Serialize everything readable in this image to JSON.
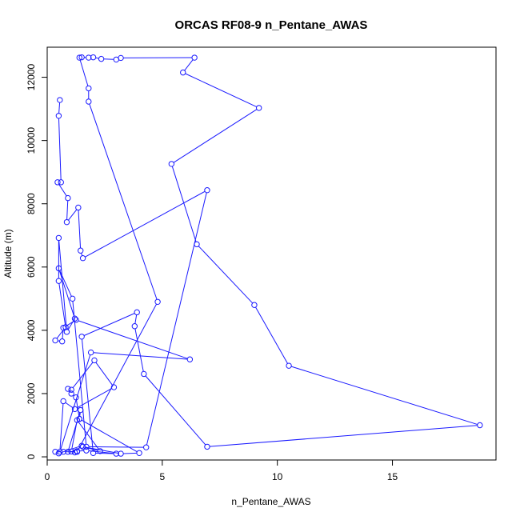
{
  "chart_data": {
    "type": "line",
    "title": "ORCAS RF08-9 n_Pentane_AWAS",
    "xlabel": "n_Pentane_AWAS",
    "ylabel": "Altitude (m)",
    "xlim": [
      0,
      19.5
    ],
    "ylim": [
      -100,
      12950
    ],
    "x_ticks": [
      0,
      5,
      10,
      15
    ],
    "y_ticks": [
      0,
      2000,
      4000,
      6000,
      8000,
      10000,
      12000
    ],
    "grid": false,
    "series_color": "#1a1aff",
    "marker": "open-circle",
    "series": [
      {
        "points": [
          [
            0.55,
            11280
          ],
          [
            0.5,
            10780
          ],
          [
            0.6,
            8680
          ],
          [
            0.45,
            8680
          ],
          [
            0.9,
            8180
          ],
          [
            0.85,
            7420
          ],
          [
            1.35,
            7880
          ],
          [
            1.45,
            6520
          ],
          [
            1.55,
            6280
          ],
          [
            6.95,
            8430
          ],
          [
            4.3,
            300
          ],
          [
            1.7,
            320
          ],
          [
            1.1,
            5000
          ],
          [
            0.5,
            5960
          ],
          [
            1.2,
            4370
          ],
          [
            0.85,
            3950
          ],
          [
            0.5,
            6920
          ],
          [
            0.5,
            5560
          ],
          [
            0.8,
            4100
          ],
          [
            0.35,
            3680
          ],
          [
            0.65,
            3650
          ],
          [
            0.7,
            4080
          ],
          [
            1.25,
            4330
          ],
          [
            6.2,
            3080
          ],
          [
            1.9,
            3300
          ],
          [
            0.55,
            160
          ],
          [
            0.7,
            1760
          ],
          [
            1.2,
            1510
          ],
          [
            2.9,
            2200
          ],
          [
            2.05,
            3050
          ],
          [
            1.05,
            2120
          ],
          [
            0.9,
            2150
          ],
          [
            1.05,
            2000
          ],
          [
            1.25,
            1880
          ],
          [
            1.4,
            1200
          ],
          [
            1.45,
            1480
          ],
          [
            0.9,
            160
          ],
          [
            1.3,
            180
          ],
          [
            1.7,
            200
          ],
          [
            3.0,
            100
          ],
          [
            2.0,
            120
          ],
          [
            1.5,
            3800
          ],
          [
            3.9,
            4570
          ],
          [
            3.8,
            4130
          ],
          [
            4.2,
            2620
          ],
          [
            6.95,
            320
          ],
          [
            18.8,
            1000
          ],
          [
            10.5,
            2880
          ],
          [
            9.0,
            4800
          ],
          [
            6.5,
            6720
          ],
          [
            5.4,
            9260
          ],
          [
            9.2,
            11030
          ],
          [
            5.9,
            12150
          ],
          [
            6.4,
            12620
          ],
          [
            3.2,
            12610
          ],
          [
            3.0,
            12560
          ],
          [
            2.35,
            12580
          ],
          [
            2.0,
            12630
          ],
          [
            1.8,
            12620
          ],
          [
            1.5,
            12630
          ],
          [
            1.4,
            12620
          ],
          [
            1.8,
            11650
          ],
          [
            1.8,
            11230
          ],
          [
            4.8,
            4900
          ],
          [
            1.3,
            160
          ],
          [
            0.7,
            160
          ],
          [
            0.35,
            160
          ],
          [
            0.5,
            110
          ],
          [
            1.5,
            350
          ],
          [
            1.2,
            140
          ],
          [
            1.05,
            170
          ],
          [
            1.3,
            1160
          ],
          [
            2.3,
            180
          ],
          [
            1.55,
            320
          ],
          [
            3.2,
            100
          ],
          [
            4.0,
            120
          ],
          [
            1.4,
            1200
          ]
        ]
      }
    ]
  }
}
